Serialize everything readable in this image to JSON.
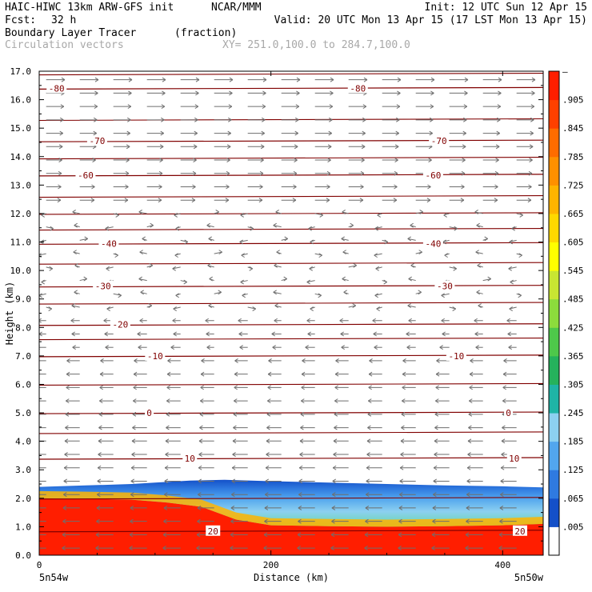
{
  "header": {
    "model": "HAIC-HIWC 13km ARW-GFS init",
    "org": "NCAR/MMM",
    "init": "Init: 12 UTC Sun 12 Apr 15",
    "fcst_label": "Fcst:",
    "fcst_value": "32 h",
    "valid": "Valid: 20 UTC Mon 13 Apr 15 (17 LST Mon 13 Apr 15)",
    "field": "Boundary Layer Tracer",
    "units": "(fraction)",
    "overlay": "Circulation vectors",
    "xy": "XY= 251.0,100.0 to 284.7,100.0"
  },
  "colors": {
    "isotherm": "#800000",
    "vector": "#6e6e6e",
    "tracer_scale": [
      "#ffffff",
      "#1450c8",
      "#2f7ae0",
      "#52a6ee",
      "#8cd0f0",
      "#1fb4a6",
      "#25b25c",
      "#4ec84a",
      "#8cdc3c",
      "#c8e632",
      "#ffff00",
      "#ffd800",
      "#ffb400",
      "#ff9000",
      "#ff6c00",
      "#ff4000",
      "#ff1e00"
    ]
  },
  "chart_data": {
    "type": "heatmap",
    "title": "Boundary Layer Tracer",
    "xlabel": "Distance (km)",
    "ylabel": "Height (km)",
    "xlim": [
      0,
      435
    ],
    "ylim": [
      0,
      17
    ],
    "x_ticks": [
      0,
      200,
      400
    ],
    "y_ticks": [
      "0.0",
      "1.0",
      "2.0",
      "3.0",
      "4.0",
      "5.0",
      "6.0",
      "7.0",
      "8.0",
      "9.0",
      "10.0",
      "11.0",
      "12.0",
      "13.0",
      "14.0",
      "15.0",
      "16.0",
      "17.0"
    ],
    "x_endpoints": [
      "5n54w",
      "5n50w"
    ],
    "colorbar_labels": [
      ".005",
      ".065",
      ".125",
      ".185",
      ".245",
      ".305",
      ".365",
      ".425",
      ".485",
      ".545",
      ".605",
      ".665",
      ".725",
      ".785",
      ".845",
      ".905",
      "–"
    ],
    "tracer_top_km": [
      [
        0,
        2.4
      ],
      [
        40,
        2.45
      ],
      [
        80,
        2.5
      ],
      [
        100,
        2.55
      ],
      [
        130,
        2.62
      ],
      [
        160,
        2.65
      ],
      [
        200,
        2.6
      ],
      [
        250,
        2.55
      ],
      [
        300,
        2.5
      ],
      [
        350,
        2.45
      ],
      [
        400,
        2.42
      ],
      [
        435,
        2.38
      ]
    ],
    "tracer_full_top_km": [
      [
        0,
        2.0
      ],
      [
        40,
        1.98
      ],
      [
        80,
        1.95
      ],
      [
        110,
        1.85
      ],
      [
        140,
        1.7
      ],
      [
        170,
        1.25
      ],
      [
        200,
        1.05
      ],
      [
        250,
        1.02
      ],
      [
        300,
        1.0
      ],
      [
        350,
        1.02
      ],
      [
        400,
        1.05
      ],
      [
        435,
        1.1
      ]
    ],
    "isotherms_C": [
      {
        "value": -80,
        "label": "-80",
        "height_km": 16.4,
        "label_x_km": [
          15,
          275
        ]
      },
      {
        "value": -70,
        "label": "-70",
        "height_km": 14.55,
        "label_x_km": [
          50,
          345
        ]
      },
      {
        "value": -60,
        "label": "-60",
        "height_km": 13.35,
        "label_x_km": [
          40,
          340
        ]
      },
      {
        "value": -40,
        "label": "-40",
        "height_km": 10.95,
        "label_x_km": [
          60,
          340
        ]
      },
      {
        "value": -30,
        "label": "-30",
        "height_km": 9.45,
        "label_x_km": [
          55,
          350
        ]
      },
      {
        "value": -20,
        "label": "-20",
        "height_km": 8.1,
        "label_x_km": [
          70,
          null
        ]
      },
      {
        "value": -10,
        "label": "-10",
        "height_km": 7.0,
        "label_x_km": [
          100,
          360
        ]
      },
      {
        "value": 0,
        "label": "0",
        "height_km": 5.0,
        "label_x_km": [
          95,
          405
        ]
      },
      {
        "value": 10,
        "label": "10",
        "height_km": 3.4,
        "label_x_km": [
          130,
          410
        ]
      },
      {
        "value": 20,
        "label": "20",
        "height_km": 0.85,
        "label_x_km": [
          150,
          415
        ]
      }
    ],
    "unlabeled_isotherm_heights_km": [
      16.9,
      15.3,
      13.95,
      12.6,
      12.0,
      11.45,
      10.25,
      8.85,
      7.6,
      6.0,
      4.3,
      2.0
    ],
    "vectors": "eastward aloft above ~12 km, weak and mixed 8-12 km, westward below ~7 km"
  }
}
